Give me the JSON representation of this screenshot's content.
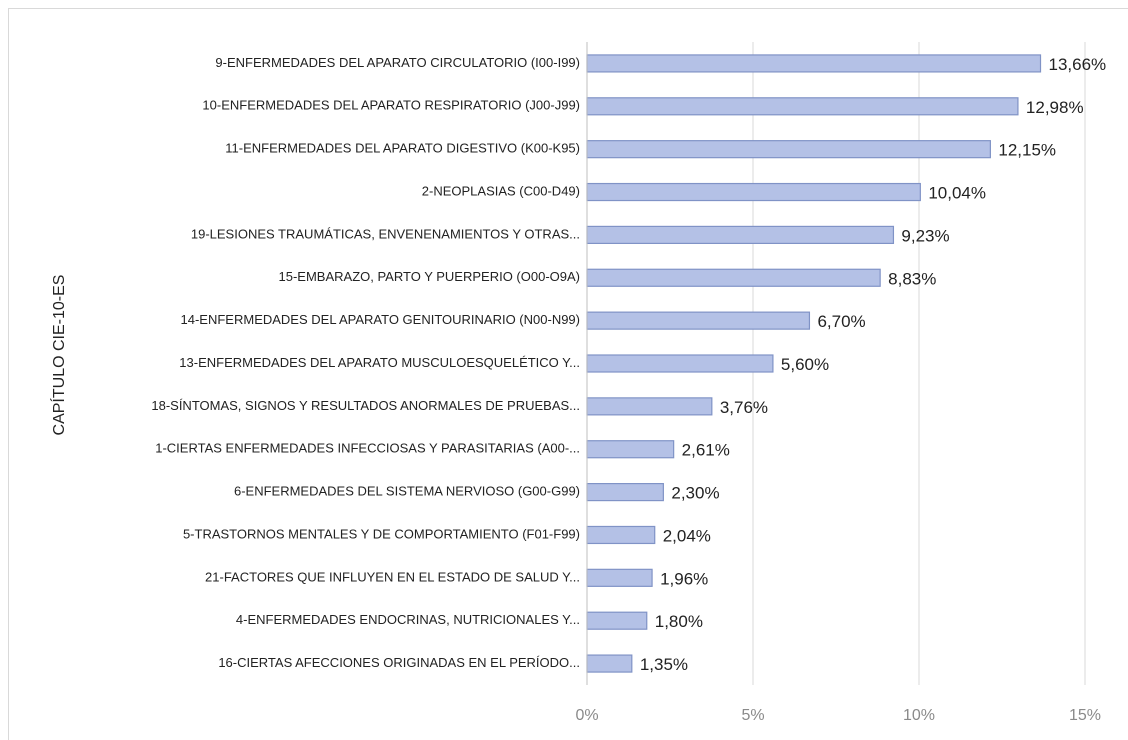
{
  "chart_data": {
    "type": "barh",
    "y_axis_label": "CAPÍTULO CIE-10-ES",
    "categories": [
      "9-ENFERMEDADES DEL APARATO CIRCULATORIO (I00-I99)",
      "10-ENFERMEDADES DEL APARATO RESPIRATORIO (J00-J99)",
      "11-ENFERMEDADES DEL APARATO DIGESTIVO (K00-K95)",
      "2-NEOPLASIAS (C00-D49)",
      "19-LESIONES TRAUMÁTICAS, ENVENENAMIENTOS Y OTRAS...",
      "15-EMBARAZO, PARTO Y PUERPERIO (O00-O9A)",
      "14-ENFERMEDADES DEL APARATO GENITOURINARIO (N00-N99)",
      "13-ENFERMEDADES DEL APARATO MUSCULOESQUELÉTICO Y...",
      "18-SÍNTOMAS, SIGNOS Y RESULTADOS ANORMALES DE PRUEBAS...",
      "1-CIERTAS ENFERMEDADES INFECCIOSAS Y PARASITARIAS (A00-...",
      "6-ENFERMEDADES DEL SISTEMA NERVIOSO (G00-G99)",
      "5-TRASTORNOS MENTALES Y DE COMPORTAMIENTO (F01-F99)",
      "21-FACTORES QUE INFLUYEN EN EL ESTADO DE SALUD Y...",
      "4-ENFERMEDADES ENDOCRINAS, NUTRICIONALES Y...",
      "16-CIERTAS AFECCIONES ORIGINADAS EN EL PERÍODO..."
    ],
    "values": [
      13.66,
      12.98,
      12.15,
      10.04,
      9.23,
      8.83,
      6.7,
      5.6,
      3.76,
      2.61,
      2.3,
      2.04,
      1.96,
      1.8,
      1.35
    ],
    "value_labels": [
      "13,66%",
      "12,98%",
      "12,15%",
      "10,04%",
      "9,23%",
      "8,83%",
      "6,70%",
      "5,60%",
      "3,76%",
      "2,61%",
      "2,30%",
      "2,04%",
      "1,96%",
      "1,80%",
      "1,35%"
    ],
    "color": "#b4c1e6",
    "edge_color": "#8093c6",
    "xlim": [
      0,
      15
    ],
    "xticks": [
      {
        "value": 0,
        "label": "0%"
      },
      {
        "value": 5,
        "label": "5%"
      },
      {
        "value": 10,
        "label": "10%"
      },
      {
        "value": 15,
        "label": "15%"
      }
    ],
    "grid": true
  }
}
